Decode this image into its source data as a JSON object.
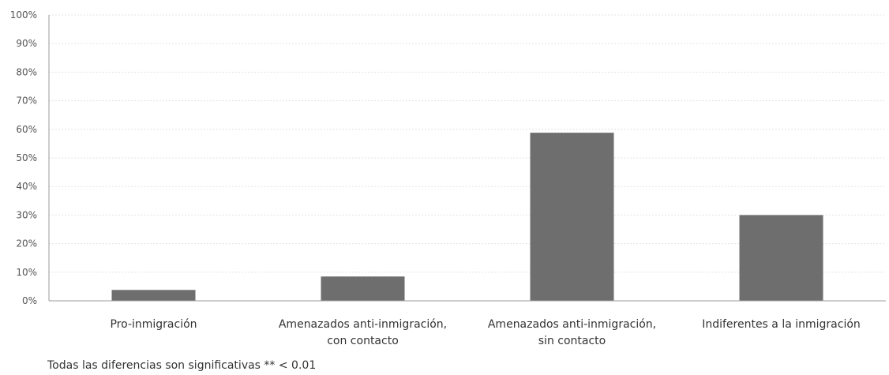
{
  "chart_data": {
    "type": "bar",
    "categories": [
      [
        "Pro-inmigración"
      ],
      [
        "Amenazados anti-inmigración,",
        "con contacto"
      ],
      [
        "Amenazados anti-inmigración,",
        "sin contacto"
      ],
      [
        "Indiferentes a la inmigración"
      ]
    ],
    "values": [
      3.8,
      8.5,
      58.8,
      30.0
    ],
    "ylim": [
      0,
      100
    ],
    "yticks": [
      "0%",
      "10%",
      "20%",
      "30%",
      "40%",
      "50%",
      "60%",
      "70%",
      "80%",
      "90%",
      "100%"
    ],
    "grid": true,
    "bar_color": "#6e6e6e",
    "note": "Todas las diferencias son significativas ** < 0.01"
  }
}
